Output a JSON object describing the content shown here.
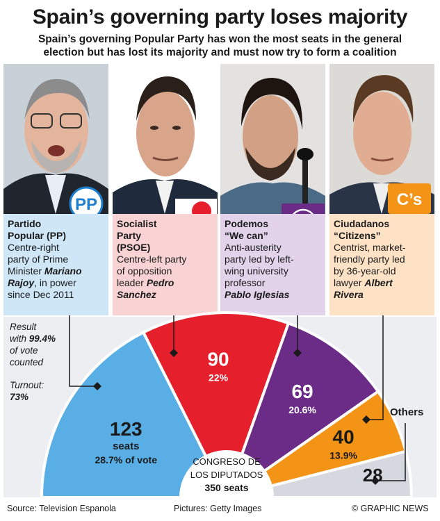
{
  "header": {
    "title": "Spain’s governing party loses majority",
    "subtitle_line1": "Spain’s governing Popular Party has won the most seats in the general",
    "subtitle_line2": "election but has lost its majority and must now try to form a coalition"
  },
  "parties": [
    {
      "name_line1": "Partido",
      "name_line2": "Popular (PP)",
      "desc_lines": [
        "Centre-right",
        "party of Prime",
        "Minister "
      ],
      "leader_first": "Mariano",
      "leader_last": "Rajoy",
      "desc_tail1": ", in power",
      "desc_tail2": "since Dec 2011",
      "logo_text": "PP",
      "color": "#5aaee6",
      "card_bg": "#cfe6f7"
    },
    {
      "name_line1": "Socialist",
      "name_line2": "Party",
      "name_line3": "(PSOE)",
      "desc_lines": [
        "Centre-left party",
        "of opposition",
        "leader "
      ],
      "leader_first": "Pedro",
      "leader_last": "Sanchez",
      "color": "#e5202c",
      "card_bg": "#f9d3d3"
    },
    {
      "name_line1": "Podemos",
      "name_line2": "“We can”",
      "desc_lines": [
        "Anti-austerity",
        "party led by left-",
        "wing university",
        "professor"
      ],
      "leader_full": "Pablo Iglesias",
      "color": "#6a2c86",
      "card_bg": "#e2d3ea"
    },
    {
      "name_line1": "Ciudadanos",
      "name_line2": "“Citizens”",
      "desc_lines": [
        "Centrist, market-",
        "friendly party led",
        "by 36-year-old",
        "lawyer "
      ],
      "leader_first": "Albert",
      "leader_last": "Rivera",
      "logo_text": "C’s",
      "color": "#f39417",
      "card_bg": "#fde2c6"
    }
  ],
  "result_note": {
    "line1": "Result",
    "line2_pre": "with ",
    "line2_value": "99.4%",
    "line3": "of vote",
    "line4": "counted",
    "turnout_label": "Turnout:",
    "turnout_value": "73%"
  },
  "center_label": {
    "line1": "Congreso de",
    "line2": "los Diputados",
    "line3": "350 seats"
  },
  "others_label": "Others",
  "footer": {
    "source": "Source: Television Espanola",
    "pictures": "Pictures: Getty Images",
    "credit": "© GRAPHIC NEWS"
  },
  "chart_data": {
    "type": "pie",
    "subtype": "parliament-semicircle",
    "total_seats": 350,
    "categories": [
      "PP",
      "PSOE",
      "Podemos",
      "Ciudadanos",
      "Others"
    ],
    "values": [
      123,
      90,
      69,
      40,
      28
    ],
    "vote_share_labels": [
      "28.7%",
      "22%",
      "20.6%",
      "13.9%",
      ""
    ],
    "value_labels": [
      "123",
      "90",
      "69",
      "40",
      "28"
    ],
    "seats_word": "seats",
    "of_vote_word": "of vote",
    "colors": [
      "#5aaee6",
      "#e5202c",
      "#6a2c86",
      "#f39417",
      "#d5d8de"
    ]
  }
}
